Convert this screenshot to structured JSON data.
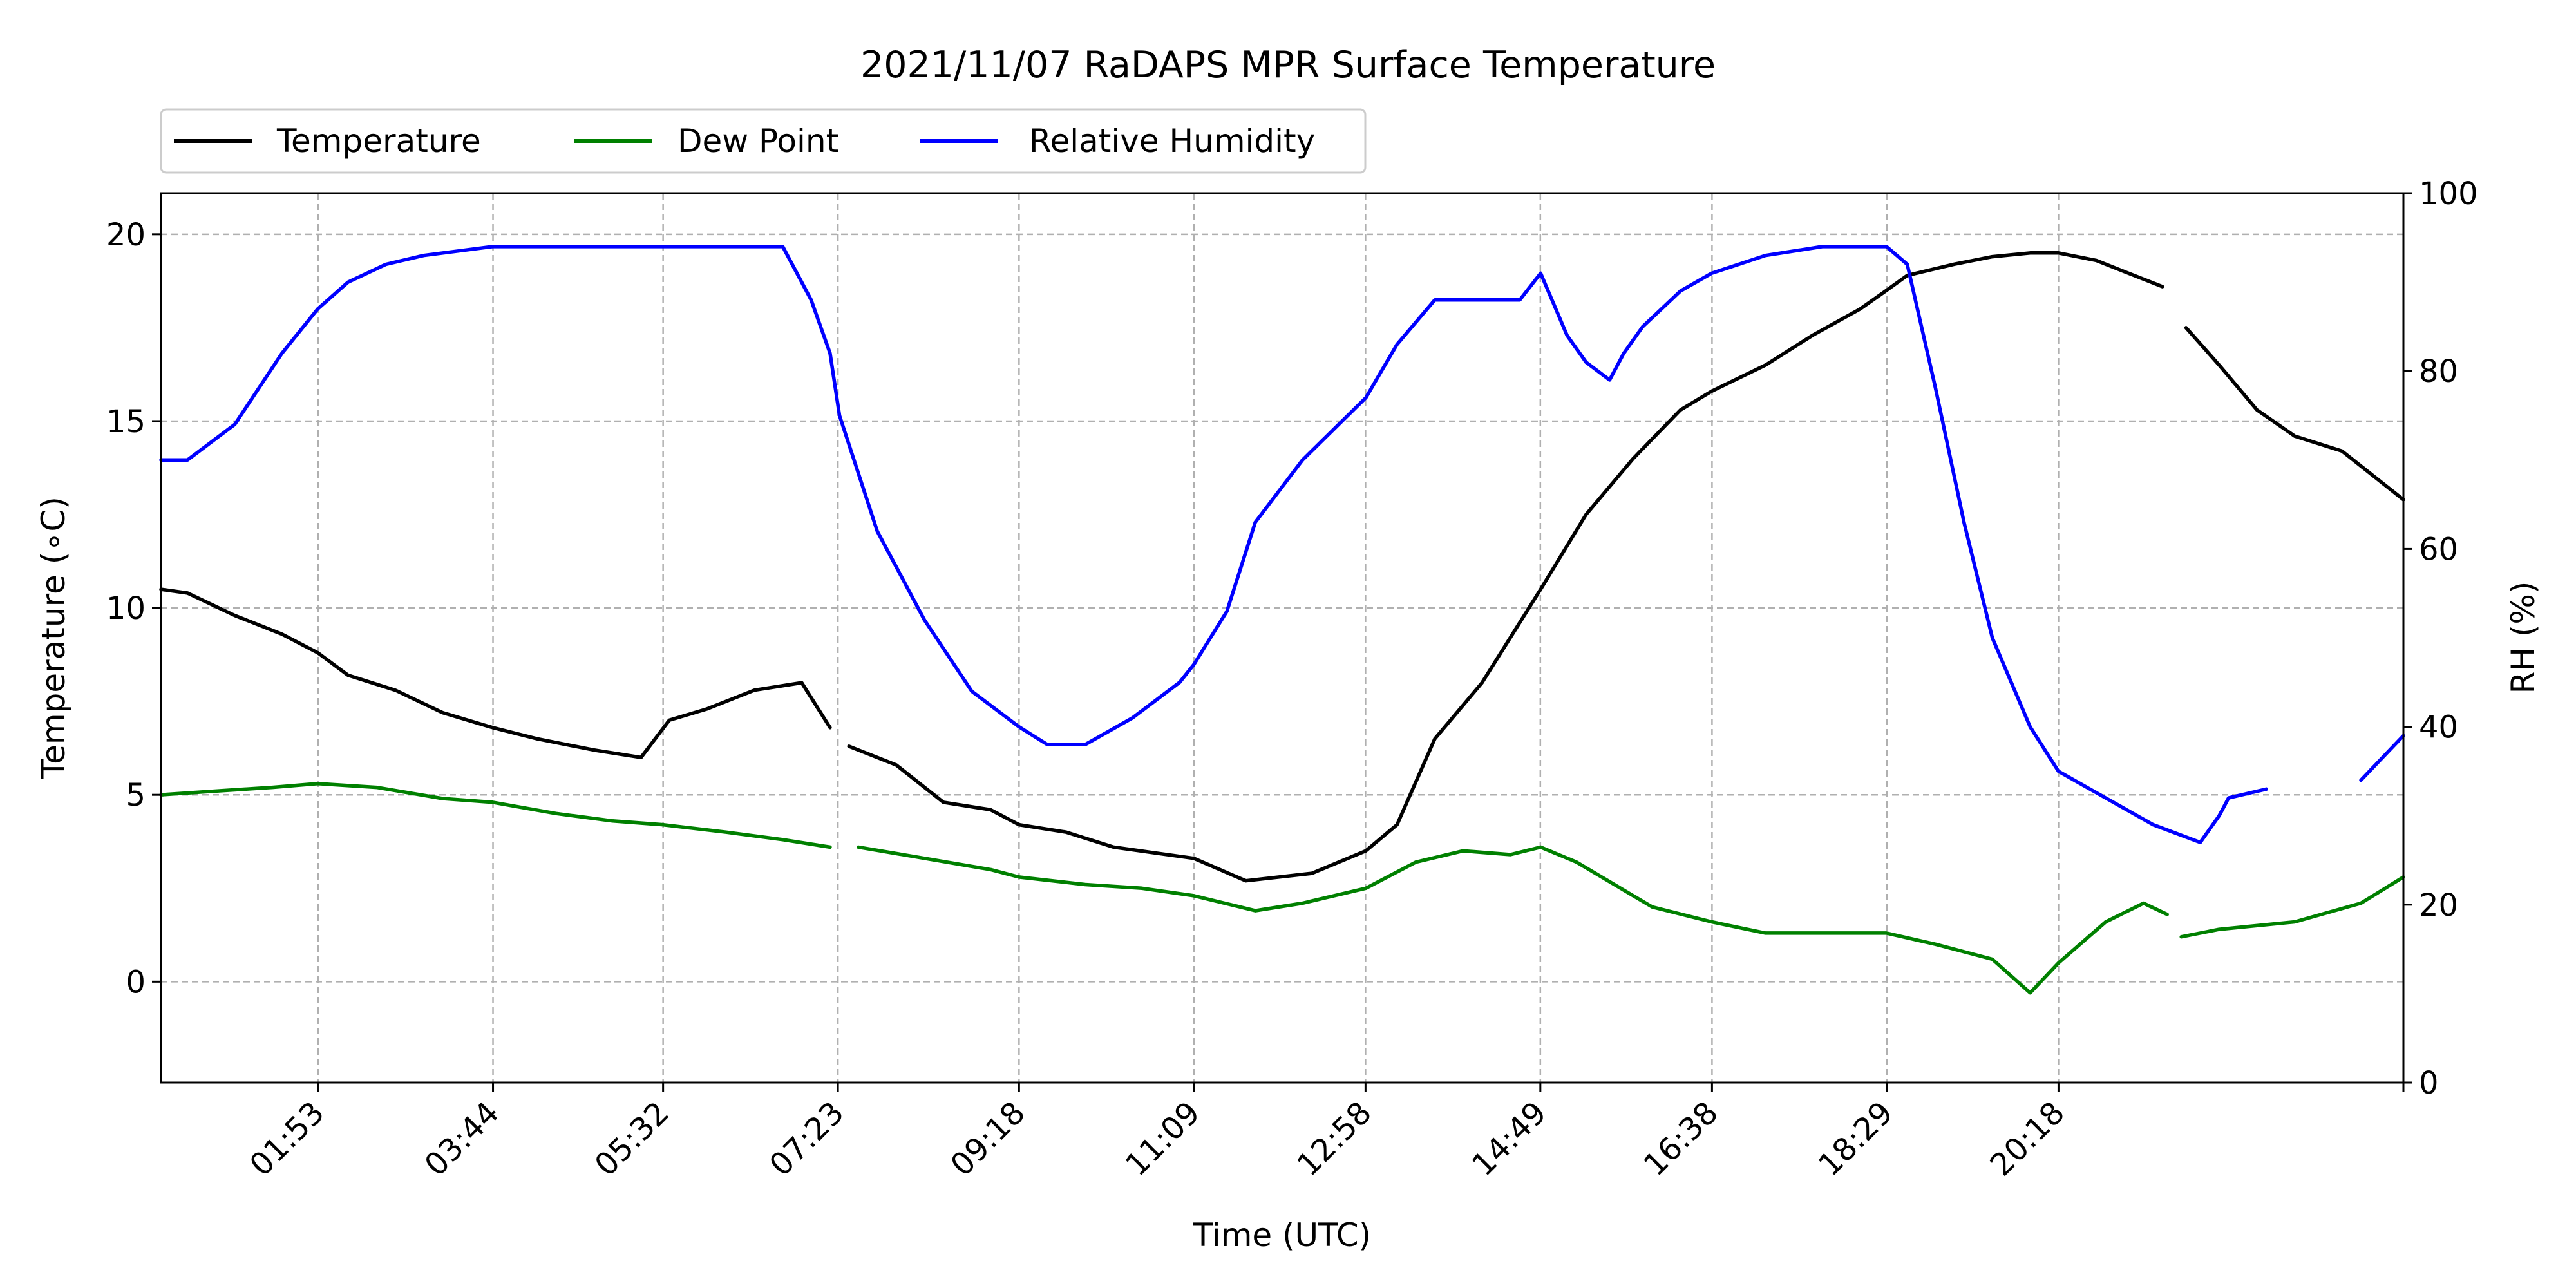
{
  "chart_data": {
    "type": "line",
    "title": "2021/11/07 RaDAPS MPR Surface Temperature",
    "xlabel": "Time (UTC)",
    "ylabel": "Temperature (∘C)",
    "ylabel_right": "RH (%)",
    "x_unit": "hours UTC",
    "xlim": [
      0.22,
      23.95
    ],
    "ylim": [
      -2.7,
      21.1
    ],
    "ylim_right": [
      0,
      100
    ],
    "x_ticks": [
      "01:53",
      "03:44",
      "05:32",
      "07:23",
      "09:18",
      "11:09",
      "12:58",
      "14:49",
      "16:38",
      "18:29",
      "20:18",
      ""
    ],
    "y_ticks": [
      "0",
      "5",
      "10",
      "15",
      "20"
    ],
    "y_ticks_right": [
      "0",
      "20",
      "40",
      "60",
      "80",
      "100"
    ],
    "grid": true,
    "legend_location": "above plot, upper-left, three columns",
    "series": [
      {
        "name": "Temperature",
        "axis": "left",
        "color": "#000000",
        "x": [
          0.22,
          0.5,
          1.0,
          1.5,
          1.88,
          2.2,
          2.7,
          3.2,
          3.73,
          4.2,
          4.8,
          5.3,
          5.6,
          6.0,
          6.5,
          7.0,
          7.3,
          7.35,
          7.5,
          8.0,
          8.5,
          9.0,
          9.3,
          9.8,
          10.3,
          11.15,
          11.7,
          12.4,
          12.97,
          13.3,
          13.7,
          14.2,
          14.82,
          15.3,
          15.8,
          16.3,
          16.63,
          17.2,
          17.7,
          18.2,
          18.48,
          18.7,
          19.2,
          19.6,
          20.0,
          20.3,
          20.7,
          21.0,
          21.4,
          21.5,
          21.65,
          22.0,
          22.4,
          22.8,
          23.3,
          23.6,
          23.95
        ],
        "y": [
          10.5,
          10.4,
          9.8,
          9.3,
          8.8,
          8.2,
          7.8,
          7.2,
          6.8,
          6.5,
          6.2,
          6.0,
          7.0,
          7.3,
          7.8,
          8.0,
          6.8,
          null,
          6.3,
          5.8,
          4.8,
          4.6,
          4.2,
          4.0,
          3.6,
          3.3,
          2.7,
          2.9,
          3.5,
          4.2,
          6.5,
          8.0,
          10.5,
          12.5,
          14.0,
          15.3,
          15.8,
          16.5,
          17.3,
          18.0,
          18.5,
          18.9,
          19.2,
          19.4,
          19.5,
          19.5,
          19.3,
          19.0,
          18.6,
          null,
          17.5,
          16.5,
          15.3,
          14.6,
          14.2,
          13.6,
          12.9
        ]
      },
      {
        "name": "Dew Point",
        "axis": "left",
        "color": "#008000",
        "x": [
          0.22,
          0.8,
          1.4,
          1.88,
          2.5,
          3.2,
          3.73,
          4.4,
          5.0,
          5.53,
          6.2,
          6.8,
          7.3,
          7.35,
          7.6,
          8.3,
          9.0,
          9.3,
          10.0,
          10.6,
          11.15,
          11.8,
          12.3,
          12.97,
          13.5,
          14.0,
          14.5,
          14.82,
          15.2,
          15.6,
          16.0,
          16.63,
          17.2,
          17.8,
          18.48,
          19.0,
          19.6,
          20.0,
          20.3,
          20.8,
          21.2,
          21.45,
          21.5,
          21.6,
          22.0,
          22.8,
          23.5,
          23.95
        ],
        "y": [
          5.0,
          5.1,
          5.2,
          5.3,
          5.2,
          4.9,
          4.8,
          4.5,
          4.3,
          4.2,
          4.0,
          3.8,
          3.6,
          null,
          3.6,
          3.3,
          3.0,
          2.8,
          2.6,
          2.5,
          2.3,
          1.9,
          2.1,
          2.5,
          3.2,
          3.5,
          3.4,
          3.6,
          3.2,
          2.6,
          2.0,
          1.6,
          1.3,
          1.3,
          1.3,
          1.0,
          0.6,
          -0.3,
          0.5,
          1.6,
          2.1,
          1.8,
          null,
          1.2,
          1.4,
          1.6,
          2.1,
          2.8
        ]
      },
      {
        "name": "Relative Humidity",
        "axis": "right",
        "color": "#0000ff",
        "x": [
          0.22,
          0.5,
          1.0,
          1.5,
          1.88,
          2.2,
          2.6,
          3.0,
          3.73,
          4.3,
          4.8,
          5.3,
          5.53,
          6.0,
          6.5,
          6.8,
          7.1,
          7.3,
          7.4,
          7.8,
          8.3,
          8.8,
          9.3,
          9.6,
          10.0,
          10.5,
          11.0,
          11.15,
          11.5,
          11.8,
          12.3,
          12.97,
          13.3,
          13.7,
          14.2,
          14.6,
          14.82,
          15.1,
          15.3,
          15.55,
          15.7,
          15.9,
          16.3,
          16.63,
          17.2,
          17.8,
          18.48,
          18.7,
          19.0,
          19.3,
          19.6,
          20.0,
          20.3,
          20.8,
          21.3,
          21.8,
          22.0,
          22.1,
          22.5,
          23.0,
          23.5,
          23.95
        ],
        "y": [
          70,
          70,
          74,
          82,
          87,
          90,
          92,
          93,
          94,
          94,
          94,
          94,
          94,
          94,
          94,
          94,
          88,
          82,
          75,
          62,
          52,
          44,
          40,
          38,
          38,
          41,
          45,
          47,
          53,
          63,
          70,
          77,
          83,
          88,
          88,
          88,
          91,
          84,
          81,
          79,
          82,
          85,
          89,
          91,
          93,
          94,
          94,
          92,
          78,
          63,
          50,
          40,
          35,
          32,
          29,
          27,
          30,
          32,
          33,
          null,
          34,
          39
        ]
      }
    ]
  }
}
